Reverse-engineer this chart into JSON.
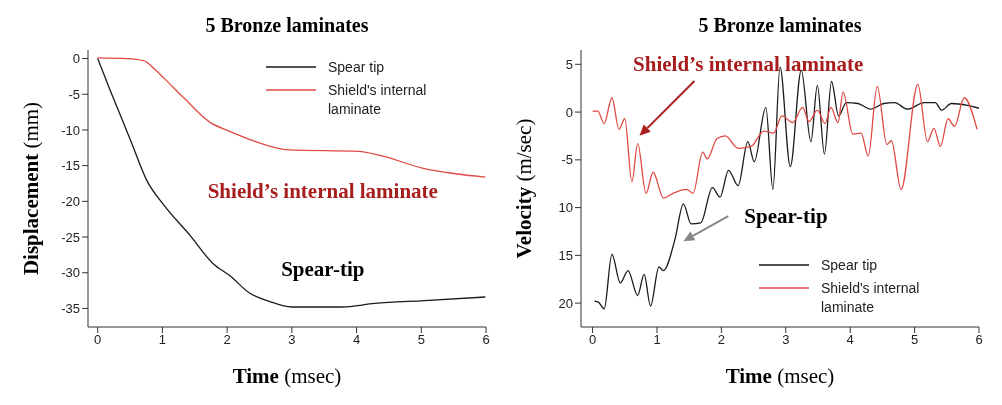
{
  "chart_data": [
    {
      "type": "line",
      "title": "5 Bronze laminates",
      "xlabel": "Time (msec)",
      "ylabel": "Displacement (mm)",
      "xlim": [
        -0.15,
        6
      ],
      "xticks": [
        0,
        1,
        2,
        3,
        4,
        5,
        6
      ],
      "ylim": [
        -37.6,
        1.2
      ],
      "yticks": [
        0,
        -5,
        -10,
        -15,
        -20,
        -25,
        -30,
        -35
      ],
      "legend": "top right",
      "annotations": [
        "Shield’s internal laminate",
        "Spear-tip"
      ],
      "series": [
        {
          "name": "Spear tip",
          "color": "#1a1a1a",
          "x": [
            0,
            0.2,
            0.51,
            0.76,
            1.02,
            1.43,
            1.78,
            2.04,
            2.34,
            2.65,
            3.0,
            3.77,
            4.28,
            5.05,
            5.99
          ],
          "values": [
            0,
            -4.6,
            -11.5,
            -17.1,
            -20.5,
            -24.8,
            -28.7,
            -30.4,
            -32.8,
            -34.0,
            -34.8,
            -34.8,
            -34.3,
            -33.9,
            -33.4
          ]
        },
        {
          "name": "Shield's internal laminate",
          "color": "#e04a44",
          "x": [
            0,
            0.46,
            0.71,
            0.87,
            1.02,
            1.33,
            1.73,
            2.04,
            2.4,
            2.96,
            4.03,
            4.38,
            5.0,
            5.5,
            5.99
          ],
          "values": [
            0.1,
            0,
            -0.3,
            -1.4,
            -2.7,
            -5.5,
            -8.9,
            -10.2,
            -11.5,
            -12.8,
            -13.0,
            -13.6,
            -15.3,
            -16.1,
            -16.6
          ]
        }
      ]
    },
    {
      "type": "line",
      "title": "5 Bronze laminates",
      "xlabel": "Time (msec)",
      "ylabel": "Velocity (m/sec)",
      "xlim": [
        -0.18,
        6
      ],
      "xticks": [
        0,
        1,
        2,
        3,
        4,
        5,
        6
      ],
      "ylim": [
        -22.5,
        6.5
      ],
      "yticks": [
        5,
        0,
        -5,
        {
          "value": -10,
          "label": "10"
        },
        {
          "value": -15,
          "label": "15"
        },
        {
          "value": -20,
          "label": "20"
        }
      ],
      "legend": "bottom right",
      "annotations": [
        "Shield’s internal laminate",
        "Spear-tip"
      ],
      "series": [
        {
          "name": "Spear tip",
          "color": "#1a1a1a",
          "x": [
            0.03,
            0.09,
            0.18,
            0.3,
            0.43,
            0.55,
            0.7,
            0.8,
            0.9,
            1.03,
            1.1,
            1.28,
            1.41,
            1.53,
            1.68,
            1.86,
            1.98,
            2.11,
            2.26,
            2.41,
            2.51,
            2.69,
            2.8,
            2.91,
            3.07,
            3.24,
            3.39,
            3.49,
            3.6,
            3.71,
            3.82,
            3.94,
            4.12,
            4.32,
            4.52,
            4.69,
            4.89,
            5.15,
            5.32,
            5.42,
            5.57,
            5.82,
            6.0
          ],
          "values": [
            -19.8,
            -19.9,
            -20.6,
            -14.9,
            -17.9,
            -16.6,
            -19.2,
            -17.0,
            -20.3,
            -16.2,
            -16.6,
            -13.3,
            -9.6,
            -11.7,
            -11.6,
            -7.9,
            -8.9,
            -6.1,
            -7.7,
            -3.1,
            -5.2,
            0.5,
            -8.1,
            4.7,
            -5.7,
            4.4,
            -3.1,
            2.8,
            -4.4,
            3.2,
            -0.4,
            1.0,
            0.9,
            0.3,
            0.9,
            1.0,
            0.3,
            1.0,
            1.0,
            0.2,
            0.9,
            0.7,
            0.4
          ]
        },
        {
          "name": "Shield's internal laminate",
          "color": "#e04a44",
          "x": [
            0,
            0.08,
            0.18,
            0.3,
            0.41,
            0.5,
            0.61,
            0.7,
            0.83,
            0.94,
            1.1,
            1.25,
            1.46,
            1.56,
            1.71,
            1.78,
            1.93,
            2.06,
            2.26,
            2.46,
            2.66,
            2.81,
            2.94,
            3.11,
            3.26,
            3.36,
            3.49,
            3.61,
            3.7,
            3.81,
            3.89,
            4.04,
            4.17,
            4.28,
            4.42,
            4.57,
            4.64,
            4.79,
            5.05,
            5.2,
            5.3,
            5.4,
            5.52,
            5.62,
            5.77,
            5.97
          ],
          "values": [
            0.1,
            0.1,
            -1.2,
            1.5,
            -1.8,
            -0.7,
            -7.3,
            -3.3,
            -8.5,
            -6.3,
            -9.0,
            -8.5,
            -8.1,
            -8.5,
            -4.2,
            -4.9,
            -2.8,
            -2.5,
            -3.8,
            -3.6,
            -2.0,
            -2.2,
            -0.4,
            -1.1,
            0.5,
            -1.0,
            0.2,
            -1.2,
            0.5,
            -1.1,
            2.1,
            -2.3,
            -2.2,
            -4.6,
            2.7,
            -3.4,
            -3.0,
            -8.1,
            2.9,
            -3.1,
            -1.7,
            -3.6,
            -0.7,
            -1.5,
            1.5,
            -1.8
          ]
        }
      ]
    }
  ]
}
